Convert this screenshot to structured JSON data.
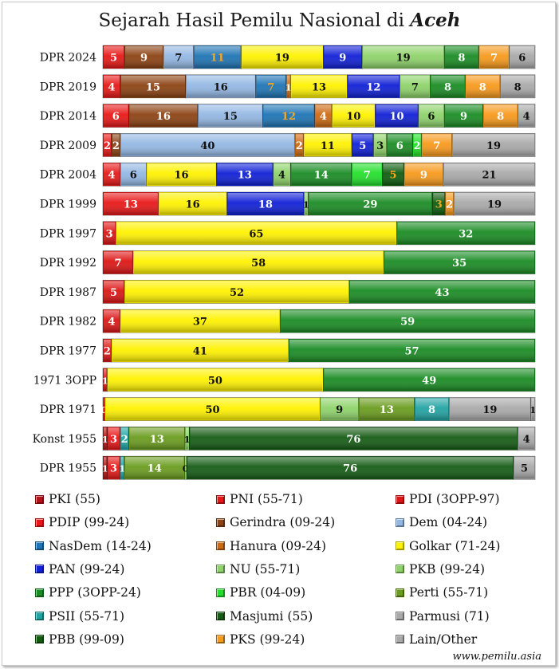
{
  "title": {
    "prefix": "Sejarah Hasil Pemilu Nasional di ",
    "region": "Aceh"
  },
  "source": "www.pemilu.asia",
  "parties": {
    "PKI": "#b5111a",
    "PNI": "#e81717",
    "PDI": "#dd1515",
    "PDIP": "#e81717",
    "Gerindra": "#8c4212",
    "Dem": "#93b7e3",
    "NasDem": "#1e74b4",
    "Hanura": "#cc6a12",
    "Golkar": "#fff200",
    "PAN": "#1020d6",
    "NU": "#8ed36a",
    "PKB": "#8ed36a",
    "PPP": "#1a8c24",
    "PBR": "#22e02a",
    "Perti": "#6a9c1e",
    "PSII": "#22a3a3",
    "Masjumi": "#155c15",
    "Parmusi": "#a9a9a9",
    "PBB": "#0f5c0f",
    "PKS": "#f7991b",
    "Lain": "#a9a9a9"
  },
  "legend": [
    {
      "label": "PKI (55)",
      "party": "PKI"
    },
    {
      "label": "PNI (55-71)",
      "party": "PNI"
    },
    {
      "label": "PDI (3OPP-97)",
      "party": "PDI"
    },
    {
      "label": "PDIP (99-24)",
      "party": "PDIP"
    },
    {
      "label": "Gerindra (09-24)",
      "party": "Gerindra"
    },
    {
      "label": "Dem (04-24)",
      "party": "Dem"
    },
    {
      "label": "NasDem (14-24)",
      "party": "NasDem"
    },
    {
      "label": "Hanura (09-24)",
      "party": "Hanura"
    },
    {
      "label": "Golkar (71-24)",
      "party": "Golkar"
    },
    {
      "label": "PAN (99-24)",
      "party": "PAN"
    },
    {
      "label": "NU (55-71)",
      "party": "NU"
    },
    {
      "label": "PKB (99-24)",
      "party": "PKB"
    },
    {
      "label": "PPP (3OPP-24)",
      "party": "PPP"
    },
    {
      "label": "PBR (04-09)",
      "party": "PBR"
    },
    {
      "label": "Perti (55-71)",
      "party": "Perti"
    },
    {
      "label": "PSII (55-71)",
      "party": "PSII"
    },
    {
      "label": "Masjumi (55)",
      "party": "Masjumi"
    },
    {
      "label": "Parmusi (71)",
      "party": "Parmusi"
    },
    {
      "label": "PBB (99-09)",
      "party": "PBB"
    },
    {
      "label": "PKS (99-24)",
      "party": "PKS"
    },
    {
      "label": "Lain/Other",
      "party": "Lain"
    }
  ],
  "chart_data": {
    "type": "bar",
    "orientation": "horizontal",
    "stacked": true,
    "normalized": "percent",
    "title": "Sejarah Hasil Pemilu Nasional di Aceh",
    "xlim": [
      0,
      100
    ],
    "legend_position": "bottom",
    "rows": [
      {
        "label": "DPR 2024",
        "segments": [
          {
            "party": "PDIP",
            "value": 5,
            "label": "5"
          },
          {
            "party": "Gerindra",
            "value": 9,
            "label": "9"
          },
          {
            "party": "Dem",
            "value": 7,
            "label": "7"
          },
          {
            "party": "NasDem",
            "value": 11,
            "label": "11"
          },
          {
            "party": "Golkar",
            "value": 19,
            "label": "19"
          },
          {
            "party": "PAN",
            "value": 9,
            "label": "9"
          },
          {
            "party": "PKB",
            "value": 19,
            "label": "19"
          },
          {
            "party": "PPP",
            "value": 8,
            "label": "8"
          },
          {
            "party": "PKS",
            "value": 7,
            "label": "7"
          },
          {
            "party": "Lain",
            "value": 6,
            "label": "6"
          }
        ]
      },
      {
        "label": "DPR 2019",
        "segments": [
          {
            "party": "PDIP",
            "value": 4,
            "label": "4"
          },
          {
            "party": "Gerindra",
            "value": 15,
            "label": "15"
          },
          {
            "party": "Dem",
            "value": 16,
            "label": "16"
          },
          {
            "party": "NasDem",
            "value": 7,
            "label": "7"
          },
          {
            "party": "Hanura",
            "value": 1,
            "label": "1"
          },
          {
            "party": "Golkar",
            "value": 13,
            "label": "13"
          },
          {
            "party": "PAN",
            "value": 12,
            "label": "12"
          },
          {
            "party": "PKB",
            "value": 7,
            "label": "7"
          },
          {
            "party": "PPP",
            "value": 8,
            "label": "8"
          },
          {
            "party": "PKS",
            "value": 8,
            "label": "8"
          },
          {
            "party": "Lain",
            "value": 8,
            "label": "8"
          }
        ]
      },
      {
        "label": "DPR 2014",
        "segments": [
          {
            "party": "PDIP",
            "value": 6,
            "label": "6"
          },
          {
            "party": "Gerindra",
            "value": 16,
            "label": "16"
          },
          {
            "party": "Dem",
            "value": 15,
            "label": "15"
          },
          {
            "party": "NasDem",
            "value": 12,
            "label": "12"
          },
          {
            "party": "Hanura",
            "value": 4,
            "label": "4"
          },
          {
            "party": "Golkar",
            "value": 10,
            "label": "10"
          },
          {
            "party": "PAN",
            "value": 10,
            "label": "10"
          },
          {
            "party": "PKB",
            "value": 6,
            "label": "6"
          },
          {
            "party": "PPP",
            "value": 9,
            "label": "9"
          },
          {
            "party": "PKS",
            "value": 8,
            "label": "8"
          },
          {
            "party": "Lain",
            "value": 4,
            "label": "4"
          }
        ]
      },
      {
        "label": "DPR 2009",
        "segments": [
          {
            "party": "PDIP",
            "value": 2,
            "label": "2"
          },
          {
            "party": "Gerindra",
            "value": 2,
            "label": "2"
          },
          {
            "party": "Dem",
            "value": 40,
            "label": "40"
          },
          {
            "party": "Hanura",
            "value": 2,
            "label": "2"
          },
          {
            "party": "Golkar",
            "value": 11,
            "label": "11"
          },
          {
            "party": "PAN",
            "value": 5,
            "label": "5"
          },
          {
            "party": "PKB",
            "value": 3,
            "label": "3"
          },
          {
            "party": "PPP",
            "value": 6,
            "label": "6"
          },
          {
            "party": "PBR",
            "value": 2,
            "label": "2"
          },
          {
            "party": "PKS",
            "value": 7,
            "label": "7"
          },
          {
            "party": "Lain",
            "value": 19,
            "label": "19"
          }
        ]
      },
      {
        "label": "DPR 2004",
        "segments": [
          {
            "party": "PDIP",
            "value": 4,
            "label": "4"
          },
          {
            "party": "Dem",
            "value": 6,
            "label": "6"
          },
          {
            "party": "Golkar",
            "value": 16,
            "label": "16"
          },
          {
            "party": "PAN",
            "value": 13,
            "label": "13"
          },
          {
            "party": "PKB",
            "value": 4,
            "label": "4"
          },
          {
            "party": "PPP",
            "value": 14,
            "label": "14"
          },
          {
            "party": "PBR",
            "value": 7,
            "label": "7"
          },
          {
            "party": "PBB",
            "value": 5,
            "label": "5"
          },
          {
            "party": "PKS",
            "value": 9,
            "label": "9"
          },
          {
            "party": "Lain",
            "value": 21,
            "label": "21"
          }
        ]
      },
      {
        "label": "DPR 1999",
        "segments": [
          {
            "party": "PDIP",
            "value": 13,
            "label": "13"
          },
          {
            "party": "Golkar",
            "value": 16,
            "label": "16"
          },
          {
            "party": "PAN",
            "value": 18,
            "label": "18"
          },
          {
            "party": "PKB",
            "value": 1,
            "label": "1"
          },
          {
            "party": "PPP",
            "value": 29,
            "label": "29"
          },
          {
            "party": "PBB",
            "value": 3,
            "label": "3"
          },
          {
            "party": "PKS",
            "value": 2,
            "label": "2"
          },
          {
            "party": "Lain",
            "value": 19,
            "label": "19"
          }
        ]
      },
      {
        "label": "DPR 1997",
        "segments": [
          {
            "party": "PDI",
            "value": 3,
            "label": "3"
          },
          {
            "party": "Golkar",
            "value": 65,
            "label": "65"
          },
          {
            "party": "PPP",
            "value": 32,
            "label": "32"
          }
        ]
      },
      {
        "label": "DPR 1992",
        "segments": [
          {
            "party": "PDI",
            "value": 7,
            "label": "7"
          },
          {
            "party": "Golkar",
            "value": 58,
            "label": "58"
          },
          {
            "party": "PPP",
            "value": 35,
            "label": "35"
          }
        ]
      },
      {
        "label": "DPR 1987",
        "segments": [
          {
            "party": "PDI",
            "value": 5,
            "label": "5"
          },
          {
            "party": "Golkar",
            "value": 52,
            "label": "52"
          },
          {
            "party": "PPP",
            "value": 43,
            "label": "43"
          }
        ]
      },
      {
        "label": "DPR 1982",
        "segments": [
          {
            "party": "PDI",
            "value": 4,
            "label": "4"
          },
          {
            "party": "Golkar",
            "value": 37,
            "label": "37"
          },
          {
            "party": "PPP",
            "value": 59,
            "label": "59"
          }
        ]
      },
      {
        "label": "DPR 1977",
        "segments": [
          {
            "party": "PDI",
            "value": 2,
            "label": "2"
          },
          {
            "party": "Golkar",
            "value": 41,
            "label": "41"
          },
          {
            "party": "PPP",
            "value": 57,
            "label": "57"
          }
        ]
      },
      {
        "label": "1971 3OPP",
        "segments": [
          {
            "party": "PDI",
            "value": 1,
            "label": "1"
          },
          {
            "party": "Golkar",
            "value": 50,
            "label": "50"
          },
          {
            "party": "PPP",
            "value": 49,
            "label": "49"
          }
        ]
      },
      {
        "label": "DPR 1971",
        "segments": [
          {
            "party": "PNI",
            "value": 0.5,
            "label": "0"
          },
          {
            "party": "Golkar",
            "value": 50,
            "label": "50"
          },
          {
            "party": "NU",
            "value": 9,
            "label": "9"
          },
          {
            "party": "Perti",
            "value": 13,
            "label": "13"
          },
          {
            "party": "PSII",
            "value": 8,
            "label": "8"
          },
          {
            "party": "Parmusi",
            "value": 19,
            "label": "19"
          },
          {
            "party": "Lain",
            "value": 1,
            "label": "1"
          }
        ]
      },
      {
        "label": "Konst 1955",
        "segments": [
          {
            "party": "PKI",
            "value": 1,
            "label": "1"
          },
          {
            "party": "PNI",
            "value": 3,
            "label": "3"
          },
          {
            "party": "PSII",
            "value": 2,
            "label": "2"
          },
          {
            "party": "Perti",
            "value": 13,
            "label": "13"
          },
          {
            "party": "NU",
            "value": 1,
            "label": "1"
          },
          {
            "party": "Masjumi",
            "value": 76,
            "label": "76"
          },
          {
            "party": "Lain",
            "value": 4,
            "label": "4"
          }
        ]
      },
      {
        "label": "DPR 1955",
        "segments": [
          {
            "party": "PKI",
            "value": 1,
            "label": "1"
          },
          {
            "party": "PNI",
            "value": 3,
            "label": "3"
          },
          {
            "party": "PSII",
            "value": 1,
            "label": "1"
          },
          {
            "party": "Perti",
            "value": 14,
            "label": "14"
          },
          {
            "party": "NU",
            "value": 0.5,
            "label": "0"
          },
          {
            "party": "Masjumi",
            "value": 76,
            "label": "76"
          },
          {
            "party": "Lain",
            "value": 5,
            "label": "5"
          }
        ]
      }
    ]
  }
}
